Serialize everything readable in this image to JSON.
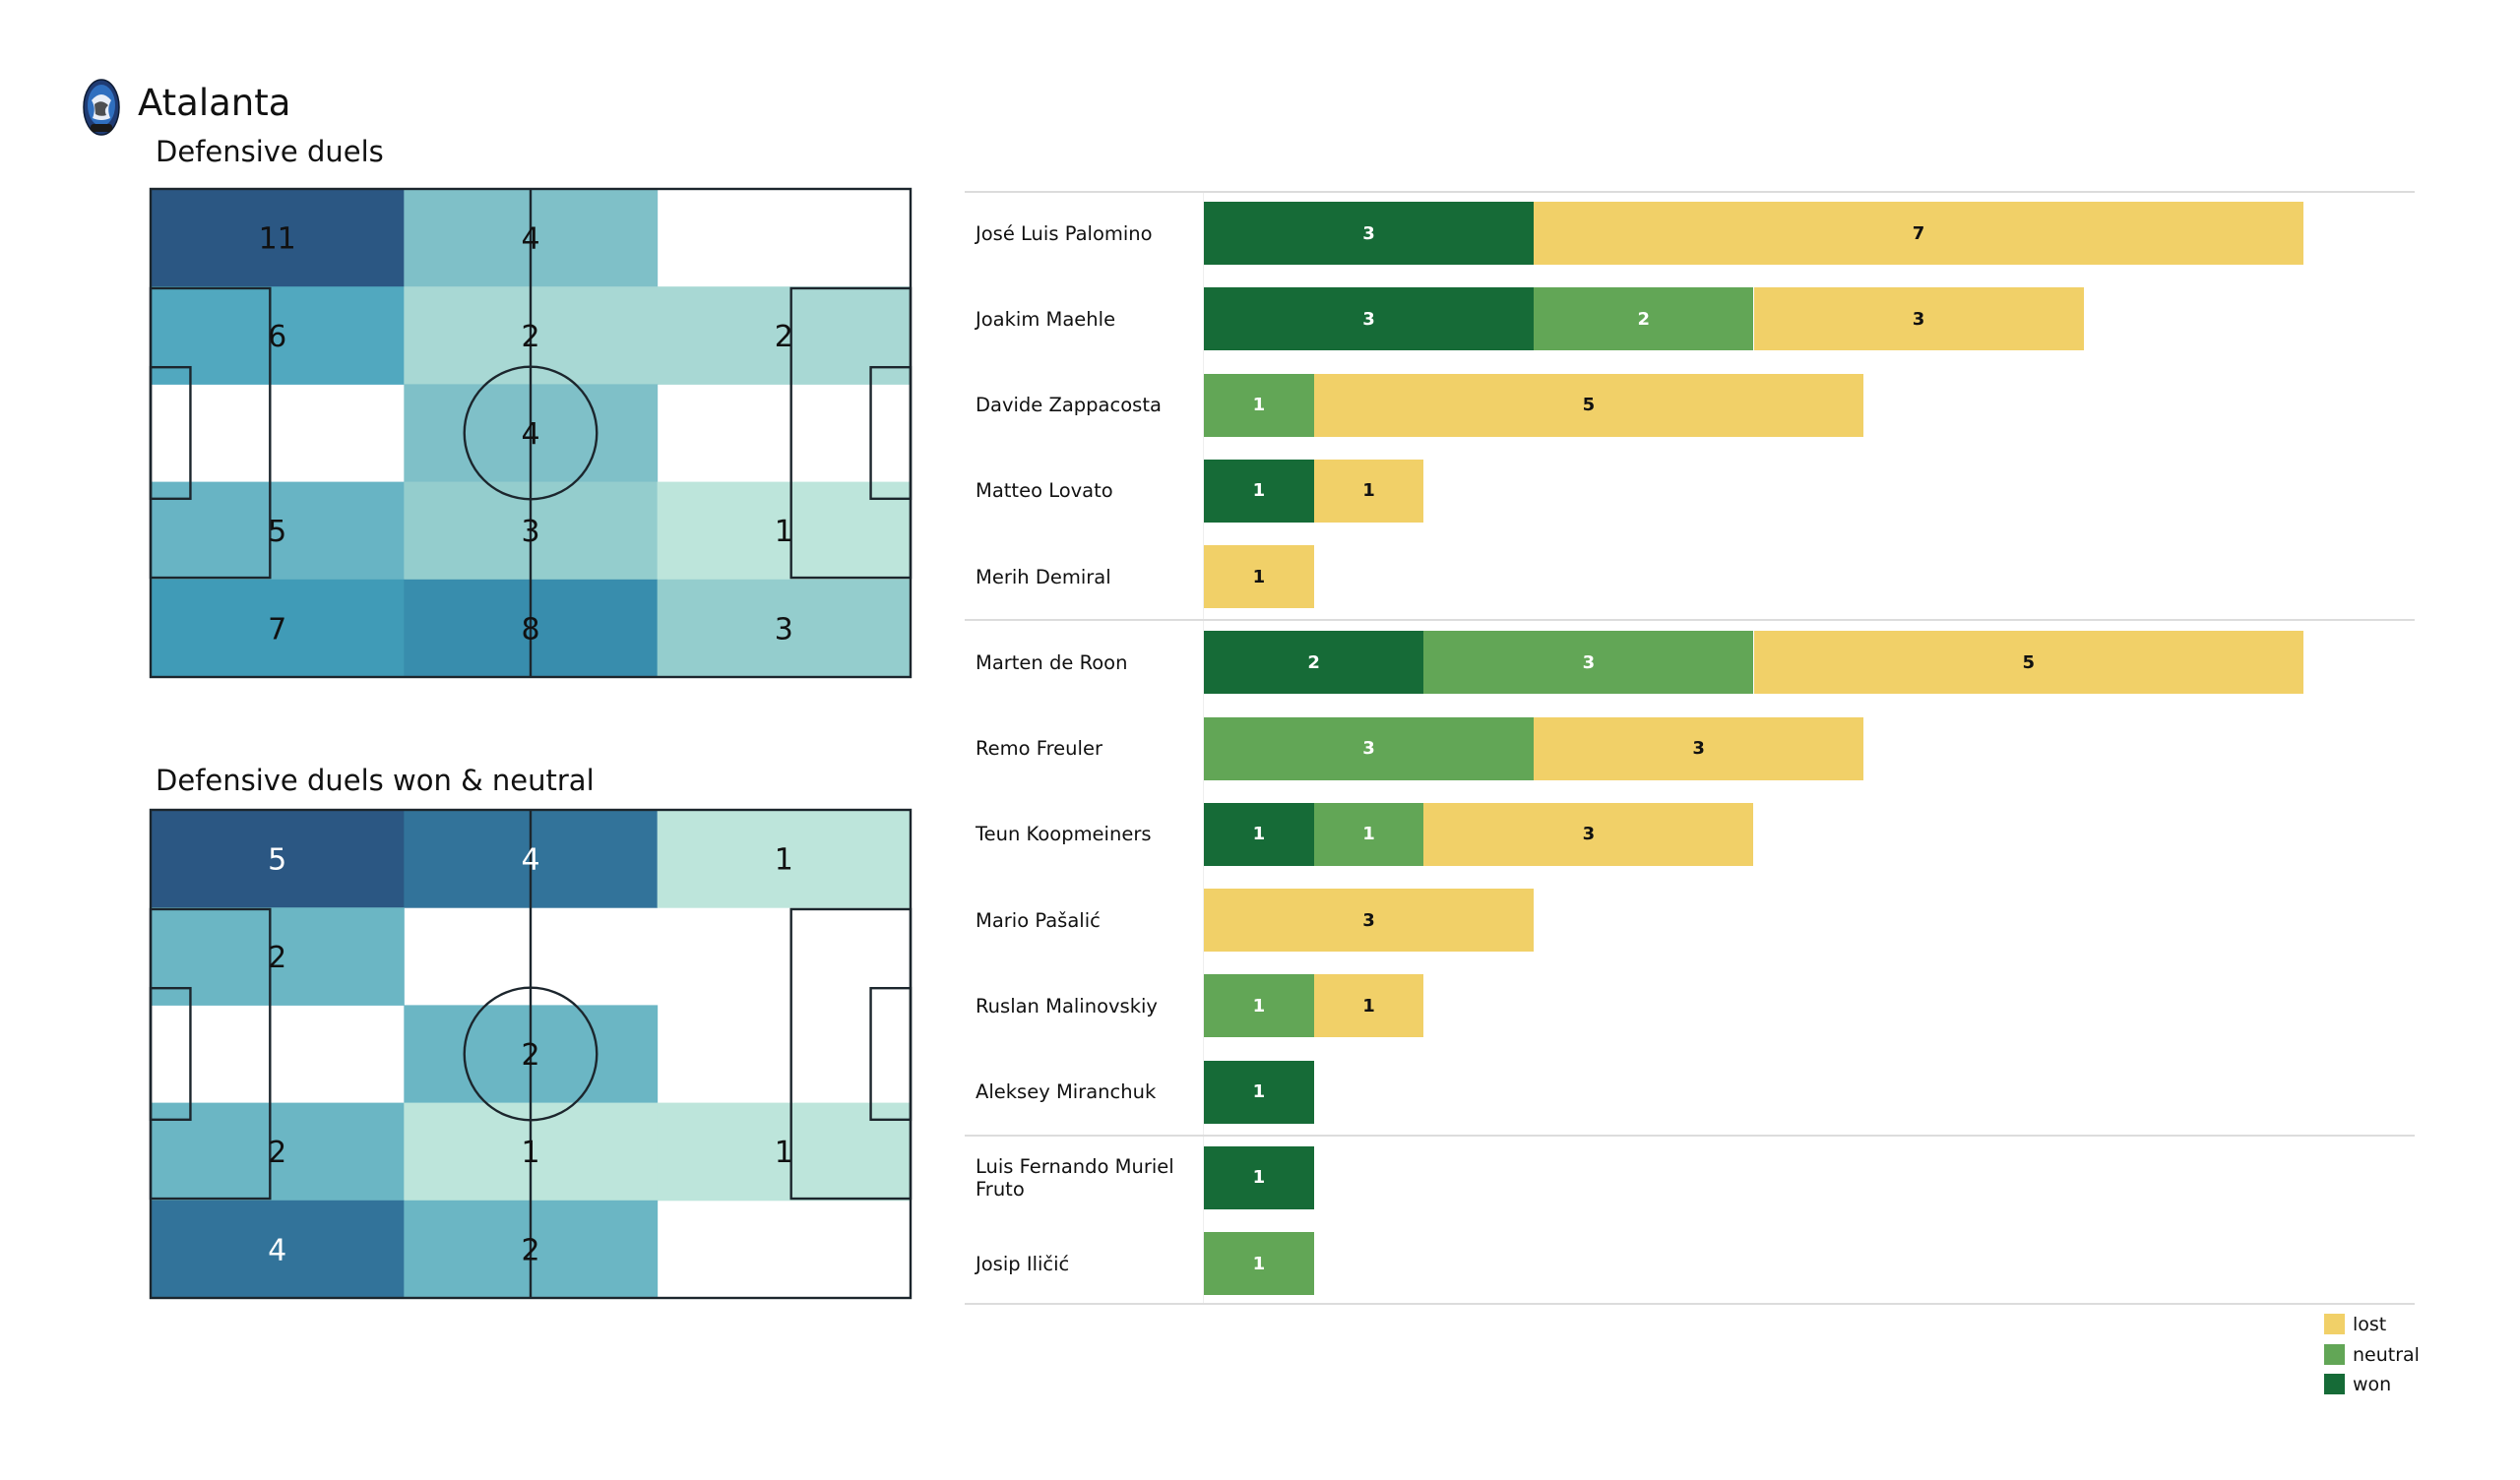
{
  "header": {
    "team_name": "Atalanta",
    "logo_icon": "atalanta-crest-icon"
  },
  "chart_data": [
    {
      "type": "heatmap",
      "title": "Defensive duels",
      "grid": {
        "columns": 3,
        "rows": 5
      },
      "values": [
        [
          11,
          4,
          null
        ],
        [
          6,
          2,
          2
        ],
        [
          null,
          4,
          null
        ],
        [
          5,
          3,
          1
        ],
        [
          7,
          8,
          3
        ]
      ],
      "max": 11,
      "light_text_values": []
    },
    {
      "type": "heatmap",
      "title": "Defensive duels won & neutral",
      "grid": {
        "columns": 3,
        "rows": 5
      },
      "values": [
        [
          5,
          4,
          1
        ],
        [
          2,
          null,
          null
        ],
        [
          null,
          2,
          null
        ],
        [
          2,
          1,
          1
        ],
        [
          4,
          2,
          null
        ]
      ],
      "max": 5,
      "light_text_values": [
        5,
        4
      ]
    },
    {
      "type": "bar",
      "orientation": "horizontal-stacked",
      "series_order": [
        "won",
        "neutral",
        "lost"
      ],
      "colors": {
        "won": "#166b37",
        "neutral": "#62a656",
        "lost": "#f1d068"
      },
      "label_colors": {
        "won": "#ffffff",
        "neutral": "#ffffff",
        "lost": "#111111"
      },
      "xlim": [
        0,
        10
      ],
      "groups": [
        {
          "players": [
            {
              "name": "José Luis Palomino",
              "won": 3,
              "neutral": 0,
              "lost": 7
            },
            {
              "name": "Joakim Maehle",
              "won": 3,
              "neutral": 2,
              "lost": 3
            },
            {
              "name": "Davide Zappacosta",
              "won": 0,
              "neutral": 1,
              "lost": 5
            },
            {
              "name": "Matteo Lovato",
              "won": 1,
              "neutral": 0,
              "lost": 1
            },
            {
              "name": "Merih Demiral",
              "won": 0,
              "neutral": 0,
              "lost": 1
            }
          ]
        },
        {
          "players": [
            {
              "name": "Marten de Roon",
              "won": 2,
              "neutral": 3,
              "lost": 5
            },
            {
              "name": "Remo Freuler",
              "won": 0,
              "neutral": 3,
              "lost": 3
            },
            {
              "name": "Teun Koopmeiners",
              "won": 1,
              "neutral": 1,
              "lost": 3
            },
            {
              "name": "Mario Pašalić",
              "won": 0,
              "neutral": 0,
              "lost": 3
            },
            {
              "name": "Ruslan Malinovskiy",
              "won": 0,
              "neutral": 1,
              "lost": 1
            },
            {
              "name": "Aleksey Miranchuk",
              "won": 1,
              "neutral": 0,
              "lost": 0
            }
          ]
        },
        {
          "players": [
            {
              "name": "Luis Fernando Muriel Fruto",
              "won": 1,
              "neutral": 0,
              "lost": 0
            },
            {
              "name": "Josip Iličić",
              "won": 0,
              "neutral": 1,
              "lost": 0
            }
          ]
        }
      ],
      "legend": {
        "position": "bottom-right",
        "items": [
          {
            "key": "lost",
            "label": "lost"
          },
          {
            "key": "neutral",
            "label": "neutral"
          },
          {
            "key": "won",
            "label": "won"
          }
        ]
      }
    }
  ]
}
